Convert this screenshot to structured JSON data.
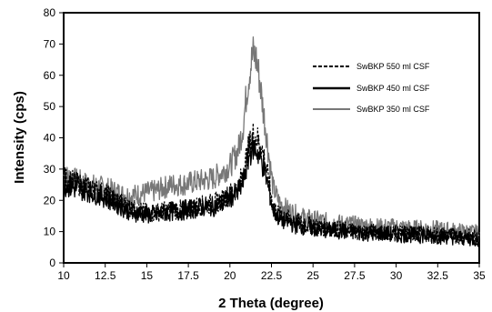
{
  "chart_data": {
    "type": "line",
    "title": "",
    "xlabel": "2 Theta (degree)",
    "ylabel": "Intensity (cps)",
    "xlim": [
      10,
      35
    ],
    "ylim": [
      0,
      80
    ],
    "x_ticks": [
      "10",
      "12.5",
      "15",
      "17.5",
      "20",
      "22.5",
      "25",
      "27.5",
      "30",
      "32.5",
      "35"
    ],
    "y_ticks": [
      "0",
      "10",
      "20",
      "30",
      "40",
      "50",
      "60",
      "70",
      "80"
    ],
    "grid": false,
    "legend_position": "top-right",
    "series": [
      {
        "name": "SwBKP 550 ml CSF",
        "color": "#000000",
        "style": "dashed",
        "x": [
          10,
          10.5,
          11,
          11.5,
          12,
          12.5,
          13,
          13.5,
          14,
          14.5,
          15,
          15.5,
          16,
          16.5,
          17,
          17.5,
          18,
          18.5,
          19,
          19.5,
          20,
          20.5,
          20.8,
          21,
          21.2,
          21.4,
          21.6,
          21.8,
          22,
          22.2,
          22.4,
          22.6,
          23,
          23.5,
          24,
          24.5,
          25,
          25.5,
          26,
          27,
          28,
          29,
          30,
          31,
          32,
          33,
          34,
          35
        ],
        "values": [
          27,
          26,
          25,
          24,
          23,
          22,
          20.5,
          19,
          17.5,
          16.5,
          16,
          16,
          16.5,
          17,
          17,
          17.5,
          18,
          18.5,
          19,
          20,
          22,
          24,
          29,
          34,
          38,
          41,
          40,
          38,
          35,
          30,
          24,
          18,
          15,
          14,
          13,
          12.5,
          12,
          11.5,
          11,
          10.5,
          10,
          10,
          9.5,
          9.5,
          9,
          9,
          8.5,
          8
        ]
      },
      {
        "name": "SwBKP 450 ml CSF",
        "color": "#000000",
        "style": "solid",
        "x": [
          10,
          10.5,
          11,
          11.5,
          12,
          12.5,
          13,
          13.5,
          14,
          14.5,
          15,
          15.5,
          16,
          16.5,
          17,
          17.5,
          18,
          18.5,
          19,
          19.5,
          20,
          20.5,
          20.8,
          21,
          21.2,
          21.4,
          21.6,
          21.8,
          22,
          22.2,
          22.4,
          22.6,
          23,
          23.5,
          24,
          24.5,
          25,
          25.5,
          26,
          27,
          28,
          29,
          30,
          31,
          32,
          33,
          34,
          35
        ],
        "values": [
          25,
          24,
          23.5,
          23,
          22,
          21,
          19.5,
          18,
          16.5,
          16,
          15.5,
          15.5,
          16,
          16.5,
          16.5,
          17,
          17.5,
          18,
          18,
          19,
          21,
          22.5,
          26,
          31,
          35,
          37,
          36,
          34,
          31,
          27,
          22,
          17,
          14,
          13,
          12,
          11.5,
          11,
          10.5,
          10.5,
          10,
          9.5,
          9.5,
          9,
          9,
          8.5,
          8.5,
          8,
          7.5
        ]
      },
      {
        "name": "SwBKP 350 ml CSF",
        "color": "#777777",
        "style": "solid",
        "x": [
          10,
          10.5,
          11,
          11.5,
          12,
          12.5,
          13,
          13.5,
          14,
          14.5,
          15,
          15.5,
          16,
          16.5,
          17,
          17.5,
          18,
          18.5,
          19,
          19.5,
          20,
          20.5,
          20.8,
          21,
          21.2,
          21.4,
          21.6,
          21.8,
          22,
          22.2,
          22.4,
          22.6,
          23,
          23.5,
          24,
          24.5,
          25,
          25.5,
          26,
          27,
          28,
          29,
          30,
          31,
          32,
          33,
          34,
          35
        ],
        "values": [
          28,
          27,
          26,
          25,
          24.5,
          24,
          23,
          22,
          21.5,
          22,
          22.5,
          23,
          24,
          25,
          25,
          25.5,
          26,
          26.5,
          27,
          29,
          31,
          36,
          44,
          54,
          62,
          67,
          65,
          58,
          49,
          41,
          32,
          24,
          19,
          17,
          15.5,
          14.5,
          14,
          13.5,
          13,
          12.5,
          12,
          11.5,
          11.5,
          11,
          11,
          10.5,
          10,
          9.5
        ]
      }
    ]
  }
}
